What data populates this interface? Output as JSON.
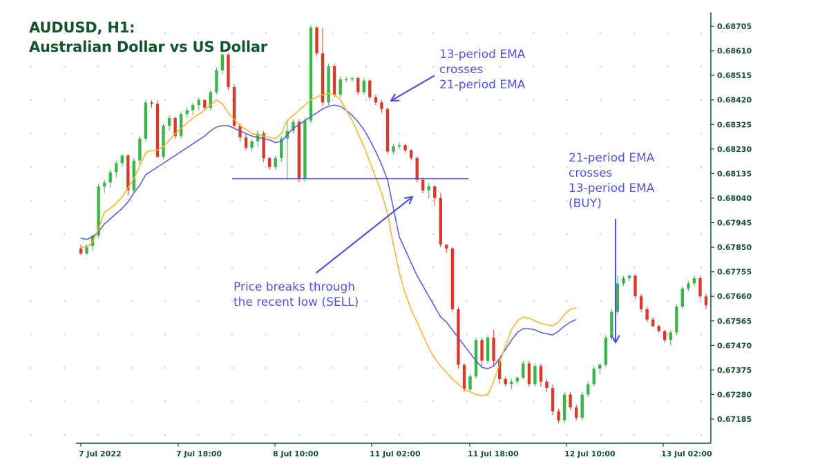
{
  "title": {
    "line1": "AUDUSD, H1:",
    "line2": "Australian Dollar vs  US Dollar"
  },
  "annotations": {
    "ema_cross_1": "13-period EMA\ncrosses\n21-period EMA",
    "ema_cross_2": "21-period EMA\ncrosses\n13-period EMA\n(BUY)",
    "sell": "Price breaks through\nthe recent low (SELL)"
  },
  "colors": {
    "bull": "#3bb54a",
    "bear": "#d93a2b",
    "ema13": "#f5b731",
    "ema21": "#5a62d6",
    "annotation": "#4f55d6",
    "axis": "#14532d",
    "grid_dot": "#c8c8c8",
    "support_line": "#4f55d6"
  },
  "chart_data": {
    "type": "candlestick",
    "y_ticks": [
      "0.68705",
      "0.68610",
      "0.68515",
      "0.68420",
      "0.68325",
      "0.68230",
      "0.68135",
      "0.68040",
      "0.67945",
      "0.67850",
      "0.67755",
      "0.67660",
      "0.67565",
      "0.67470",
      "0.67375",
      "0.67280",
      "0.67185"
    ],
    "x_ticks": [
      "7 Jul 2022",
      "7 Jul 18:00",
      "8 Jul 10:00",
      "11 Jul 02:00",
      "11 Jul 18:00",
      "12 Jul 10:00",
      "13 Jul 02:00"
    ],
    "ylim": [
      0.6712,
      0.6874
    ],
    "grid": "dotted",
    "support_level": 0.68115,
    "series": [
      {
        "name": "13-period EMA",
        "values": [
          0.6785,
          0.6785,
          0.6787,
          0.6792,
          0.67985,
          0.68,
          0.6802,
          0.68045,
          0.6808,
          0.68115,
          0.68165,
          0.68215,
          0.68225,
          0.68225,
          0.6824,
          0.68265,
          0.6829,
          0.6831,
          0.6833,
          0.6835,
          0.68365,
          0.6838,
          0.684,
          0.6842,
          0.68405,
          0.6837,
          0.68345,
          0.6832,
          0.68305,
          0.6829,
          0.68285,
          0.6828,
          0.68275,
          0.6827,
          0.6829,
          0.6834,
          0.6836,
          0.6838,
          0.684,
          0.6842,
          0.6843,
          0.6844,
          0.68445,
          0.6844,
          0.6842,
          0.6838,
          0.6834,
          0.6829,
          0.6824,
          0.6818,
          0.6812,
          0.6806,
          0.6798,
          0.6786,
          0.6775,
          0.6767,
          0.6761,
          0.6756,
          0.6751,
          0.6746,
          0.6742,
          0.6739,
          0.67365,
          0.6734,
          0.6732,
          0.673,
          0.6729,
          0.6728,
          0.67275,
          0.6728,
          0.6733,
          0.674,
          0.6747,
          0.6753,
          0.67565,
          0.6758,
          0.67575,
          0.67565,
          0.67555,
          0.6755,
          0.67545,
          0.6756,
          0.6759,
          0.6761,
          0.67615
        ]
      },
      {
        "name": "21-period EMA",
        "values": [
          0.67885,
          0.6788,
          0.6789,
          0.6791,
          0.6794,
          0.6796,
          0.6798,
          0.68,
          0.68025,
          0.6806,
          0.6809,
          0.6813,
          0.68145,
          0.6816,
          0.68175,
          0.6819,
          0.68205,
          0.6822,
          0.68235,
          0.6825,
          0.68265,
          0.6828,
          0.683,
          0.68315,
          0.6832,
          0.6832,
          0.6831,
          0.683,
          0.6829,
          0.6828,
          0.68275,
          0.6827,
          0.68265,
          0.68255,
          0.6826,
          0.68285,
          0.6831,
          0.68325,
          0.6834,
          0.68355,
          0.6837,
          0.68385,
          0.68395,
          0.684,
          0.68395,
          0.6838,
          0.6836,
          0.68335,
          0.68305,
          0.68265,
          0.6822,
          0.6817,
          0.6811,
          0.68,
          0.6789,
          0.6784,
          0.6779,
          0.6774,
          0.677,
          0.6766,
          0.6762,
          0.6758,
          0.6756,
          0.6753,
          0.675,
          0.6747,
          0.6744,
          0.6741,
          0.67385,
          0.6738,
          0.6739,
          0.6742,
          0.67455,
          0.6749,
          0.6752,
          0.67535,
          0.67535,
          0.6753,
          0.6752,
          0.67515,
          0.6751,
          0.67525,
          0.67545,
          0.6756,
          0.6757
        ]
      }
    ],
    "candles": [
      {
        "o": 0.67845,
        "h": 0.6786,
        "l": 0.6782,
        "c": 0.67825
      },
      {
        "o": 0.67825,
        "h": 0.6786,
        "l": 0.6782,
        "c": 0.67855
      },
      {
        "o": 0.67855,
        "h": 0.679,
        "l": 0.67835,
        "c": 0.67895
      },
      {
        "o": 0.67895,
        "h": 0.68095,
        "l": 0.67885,
        "c": 0.68085
      },
      {
        "o": 0.68085,
        "h": 0.6811,
        "l": 0.6806,
        "c": 0.681
      },
      {
        "o": 0.681,
        "h": 0.6815,
        "l": 0.6808,
        "c": 0.6814
      },
      {
        "o": 0.6814,
        "h": 0.68185,
        "l": 0.6812,
        "c": 0.68175
      },
      {
        "o": 0.68175,
        "h": 0.6821,
        "l": 0.6816,
        "c": 0.68205
      },
      {
        "o": 0.68205,
        "h": 0.6821,
        "l": 0.6805,
        "c": 0.6807
      },
      {
        "o": 0.6807,
        "h": 0.68195,
        "l": 0.6806,
        "c": 0.68185
      },
      {
        "o": 0.68185,
        "h": 0.6828,
        "l": 0.6817,
        "c": 0.6827
      },
      {
        "o": 0.6827,
        "h": 0.6842,
        "l": 0.6826,
        "c": 0.6841
      },
      {
        "o": 0.6841,
        "h": 0.6842,
        "l": 0.6839,
        "c": 0.68405
      },
      {
        "o": 0.68405,
        "h": 0.6842,
        "l": 0.68195,
        "c": 0.682
      },
      {
        "o": 0.682,
        "h": 0.68325,
        "l": 0.6819,
        "c": 0.6832
      },
      {
        "o": 0.6832,
        "h": 0.6836,
        "l": 0.683,
        "c": 0.6835
      },
      {
        "o": 0.6835,
        "h": 0.68355,
        "l": 0.6827,
        "c": 0.6828
      },
      {
        "o": 0.6828,
        "h": 0.68375,
        "l": 0.6827,
        "c": 0.68365
      },
      {
        "o": 0.68365,
        "h": 0.6839,
        "l": 0.6835,
        "c": 0.6838
      },
      {
        "o": 0.6838,
        "h": 0.6841,
        "l": 0.6836,
        "c": 0.684
      },
      {
        "o": 0.684,
        "h": 0.6843,
        "l": 0.6838,
        "c": 0.6842
      },
      {
        "o": 0.6842,
        "h": 0.6842,
        "l": 0.6838,
        "c": 0.6839
      },
      {
        "o": 0.6839,
        "h": 0.6846,
        "l": 0.6838,
        "c": 0.6845
      },
      {
        "o": 0.6845,
        "h": 0.68545,
        "l": 0.6844,
        "c": 0.68535
      },
      {
        "o": 0.68535,
        "h": 0.686,
        "l": 0.6852,
        "c": 0.68595
      },
      {
        "o": 0.68595,
        "h": 0.686,
        "l": 0.6846,
        "c": 0.6847
      },
      {
        "o": 0.6847,
        "h": 0.6848,
        "l": 0.6831,
        "c": 0.6832
      },
      {
        "o": 0.6832,
        "h": 0.6833,
        "l": 0.6826,
        "c": 0.68275
      },
      {
        "o": 0.68275,
        "h": 0.6829,
        "l": 0.68225,
        "c": 0.68235
      },
      {
        "o": 0.68235,
        "h": 0.6827,
        "l": 0.6822,
        "c": 0.6826
      },
      {
        "o": 0.6826,
        "h": 0.683,
        "l": 0.6824,
        "c": 0.6829
      },
      {
        "o": 0.6829,
        "h": 0.683,
        "l": 0.6818,
        "c": 0.68195
      },
      {
        "o": 0.68195,
        "h": 0.682,
        "l": 0.6815,
        "c": 0.6816
      },
      {
        "o": 0.6816,
        "h": 0.68205,
        "l": 0.6815,
        "c": 0.68195
      },
      {
        "o": 0.68195,
        "h": 0.6828,
        "l": 0.6818,
        "c": 0.6827
      },
      {
        "o": 0.6827,
        "h": 0.68345,
        "l": 0.6811,
        "c": 0.683
      },
      {
        "o": 0.683,
        "h": 0.68345,
        "l": 0.6829,
        "c": 0.68335
      },
      {
        "o": 0.68335,
        "h": 0.68345,
        "l": 0.681,
        "c": 0.68115
      },
      {
        "o": 0.68115,
        "h": 0.6835,
        "l": 0.68105,
        "c": 0.6834
      },
      {
        "o": 0.6834,
        "h": 0.6871,
        "l": 0.6833,
        "c": 0.687
      },
      {
        "o": 0.687,
        "h": 0.68705,
        "l": 0.6859,
        "c": 0.686
      },
      {
        "o": 0.686,
        "h": 0.687,
        "l": 0.68395,
        "c": 0.6841
      },
      {
        "o": 0.6841,
        "h": 0.6856,
        "l": 0.684,
        "c": 0.6855
      },
      {
        "o": 0.6855,
        "h": 0.6856,
        "l": 0.6843,
        "c": 0.6844
      },
      {
        "o": 0.6844,
        "h": 0.6851,
        "l": 0.6843,
        "c": 0.685
      },
      {
        "o": 0.685,
        "h": 0.6851,
        "l": 0.6849,
        "c": 0.685
      },
      {
        "o": 0.685,
        "h": 0.6851,
        "l": 0.6849,
        "c": 0.68505
      },
      {
        "o": 0.68505,
        "h": 0.6851,
        "l": 0.6844,
        "c": 0.6845
      },
      {
        "o": 0.6845,
        "h": 0.68505,
        "l": 0.6844,
        "c": 0.68495
      },
      {
        "o": 0.68495,
        "h": 0.685,
        "l": 0.6842,
        "c": 0.6843
      },
      {
        "o": 0.6843,
        "h": 0.6844,
        "l": 0.684,
        "c": 0.6841
      },
      {
        "o": 0.6841,
        "h": 0.6842,
        "l": 0.6837,
        "c": 0.68385
      },
      {
        "o": 0.68385,
        "h": 0.6839,
        "l": 0.6821,
        "c": 0.6822
      },
      {
        "o": 0.6822,
        "h": 0.6825,
        "l": 0.6821,
        "c": 0.6824
      },
      {
        "o": 0.6824,
        "h": 0.68255,
        "l": 0.6823,
        "c": 0.68245
      },
      {
        "o": 0.68245,
        "h": 0.6825,
        "l": 0.68215,
        "c": 0.68225
      },
      {
        "o": 0.68225,
        "h": 0.6823,
        "l": 0.68185,
        "c": 0.68195
      },
      {
        "o": 0.68195,
        "h": 0.682,
        "l": 0.681,
        "c": 0.6811
      },
      {
        "o": 0.6811,
        "h": 0.6812,
        "l": 0.6806,
        "c": 0.6807
      },
      {
        "o": 0.6807,
        "h": 0.681,
        "l": 0.6804,
        "c": 0.68085
      },
      {
        "o": 0.68085,
        "h": 0.6809,
        "l": 0.6801,
        "c": 0.6804
      },
      {
        "o": 0.6804,
        "h": 0.6806,
        "l": 0.6785,
        "c": 0.6786
      },
      {
        "o": 0.6786,
        "h": 0.6786,
        "l": 0.6783,
        "c": 0.67845
      },
      {
        "o": 0.67845,
        "h": 0.6785,
        "l": 0.676,
        "c": 0.6761
      },
      {
        "o": 0.6761,
        "h": 0.6762,
        "l": 0.6738,
        "c": 0.67395
      },
      {
        "o": 0.67395,
        "h": 0.674,
        "l": 0.6729,
        "c": 0.673
      },
      {
        "o": 0.673,
        "h": 0.6736,
        "l": 0.6729,
        "c": 0.6735
      },
      {
        "o": 0.6735,
        "h": 0.675,
        "l": 0.6734,
        "c": 0.6749
      },
      {
        "o": 0.6749,
        "h": 0.675,
        "l": 0.6739,
        "c": 0.6741
      },
      {
        "o": 0.6741,
        "h": 0.6751,
        "l": 0.674,
        "c": 0.675
      },
      {
        "o": 0.675,
        "h": 0.6753,
        "l": 0.6739,
        "c": 0.6741
      },
      {
        "o": 0.6741,
        "h": 0.6742,
        "l": 0.6732,
        "c": 0.6734
      },
      {
        "o": 0.6734,
        "h": 0.6735,
        "l": 0.6731,
        "c": 0.6732
      },
      {
        "o": 0.6732,
        "h": 0.6734,
        "l": 0.673,
        "c": 0.6733
      },
      {
        "o": 0.6733,
        "h": 0.6735,
        "l": 0.6732,
        "c": 0.67345
      },
      {
        "o": 0.67345,
        "h": 0.6741,
        "l": 0.6734,
        "c": 0.674
      },
      {
        "o": 0.674,
        "h": 0.6741,
        "l": 0.6731,
        "c": 0.6732
      },
      {
        "o": 0.6732,
        "h": 0.674,
        "l": 0.6731,
        "c": 0.6739
      },
      {
        "o": 0.6739,
        "h": 0.674,
        "l": 0.6731,
        "c": 0.6733
      },
      {
        "o": 0.6733,
        "h": 0.6734,
        "l": 0.6729,
        "c": 0.67305
      },
      {
        "o": 0.67305,
        "h": 0.6732,
        "l": 0.672,
        "c": 0.67215
      },
      {
        "o": 0.67215,
        "h": 0.67225,
        "l": 0.6717,
        "c": 0.6718
      },
      {
        "o": 0.6718,
        "h": 0.6729,
        "l": 0.6717,
        "c": 0.6728
      },
      {
        "o": 0.6728,
        "h": 0.6729,
        "l": 0.6722,
        "c": 0.6723
      },
      {
        "o": 0.6723,
        "h": 0.6724,
        "l": 0.6718,
        "c": 0.6719
      },
      {
        "o": 0.6719,
        "h": 0.6729,
        "l": 0.6718,
        "c": 0.6728
      },
      {
        "o": 0.6728,
        "h": 0.6733,
        "l": 0.6727,
        "c": 0.6732
      },
      {
        "o": 0.6732,
        "h": 0.6739,
        "l": 0.6731,
        "c": 0.6738
      },
      {
        "o": 0.6738,
        "h": 0.674,
        "l": 0.6736,
        "c": 0.67395
      },
      {
        "o": 0.67395,
        "h": 0.6751,
        "l": 0.67385,
        "c": 0.675
      },
      {
        "o": 0.675,
        "h": 0.6761,
        "l": 0.6749,
        "c": 0.676
      },
      {
        "o": 0.676,
        "h": 0.6774,
        "l": 0.6759,
        "c": 0.6771
      },
      {
        "o": 0.6771,
        "h": 0.6774,
        "l": 0.677,
        "c": 0.6773
      },
      {
        "o": 0.6773,
        "h": 0.67745,
        "l": 0.6772,
        "c": 0.6774
      },
      {
        "o": 0.6774,
        "h": 0.67745,
        "l": 0.6765,
        "c": 0.6766
      },
      {
        "o": 0.6766,
        "h": 0.6767,
        "l": 0.676,
        "c": 0.6761
      },
      {
        "o": 0.6761,
        "h": 0.6762,
        "l": 0.6756,
        "c": 0.6757
      },
      {
        "o": 0.6757,
        "h": 0.6758,
        "l": 0.6754,
        "c": 0.67545
      },
      {
        "o": 0.67545,
        "h": 0.6755,
        "l": 0.6752,
        "c": 0.67525
      },
      {
        "o": 0.67525,
        "h": 0.6753,
        "l": 0.6748,
        "c": 0.6749
      },
      {
        "o": 0.6749,
        "h": 0.6753,
        "l": 0.6747,
        "c": 0.6752
      },
      {
        "o": 0.6752,
        "h": 0.6763,
        "l": 0.6751,
        "c": 0.6762
      },
      {
        "o": 0.6762,
        "h": 0.677,
        "l": 0.6761,
        "c": 0.6769
      },
      {
        "o": 0.6769,
        "h": 0.6772,
        "l": 0.6768,
        "c": 0.6771
      },
      {
        "o": 0.6771,
        "h": 0.6774,
        "l": 0.677,
        "c": 0.6773
      },
      {
        "o": 0.6773,
        "h": 0.6774,
        "l": 0.6765,
        "c": 0.6766
      },
      {
        "o": 0.6766,
        "h": 0.6767,
        "l": 0.6761,
        "c": 0.67625
      }
    ]
  }
}
